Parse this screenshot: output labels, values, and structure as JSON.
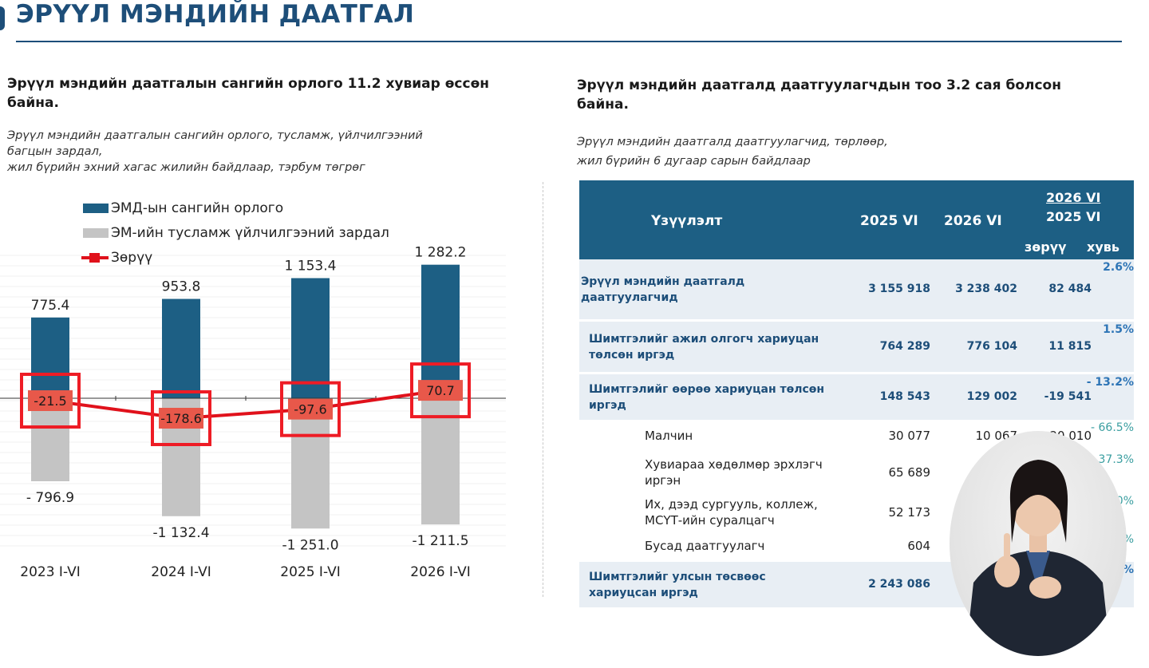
{
  "title": "ЭРҮҮЛ МЭНДИЙН ДААТГАЛ",
  "left": {
    "heading_lines": [
      "Эрүүл мэндийн даатгалын сангийн орлого 11.2 хувиар өссөн",
      "байна."
    ],
    "sub_lines": [
      "Эрүүл мэндийн даатгалын сангийн орлого, тусламж, үйлчилгээний",
      "багцын зардал,",
      "жил бүрийн эхний хагас жилийн байдлаар, тэрбум төгрөг"
    ]
  },
  "chart_data": {
    "type": "bar",
    "categories": [
      "2023 I-VI",
      "2024 I-VI",
      "2025 I-VI",
      "2026 I-VI"
    ],
    "series": [
      {
        "name": "ЭМД-ын сангийн орлого",
        "kind": "bar",
        "color": "#1d5f84",
        "values": [
          775.4,
          953.8,
          1153.4,
          1282.2
        ],
        "labels": [
          "775.4",
          "953.8",
          "1 153.4",
          "1 282.2"
        ]
      },
      {
        "name": "ЭМ-ийн тусламж үйлчилгээний зардал",
        "kind": "bar",
        "color": "#c4c4c4",
        "values": [
          -796.9,
          -1132.4,
          -1251.0,
          -1211.5
        ],
        "labels": [
          "- 796.9",
          "-1 132.4",
          "-1 251.0",
          "-1 211.5"
        ]
      },
      {
        "name": "Зөрүү",
        "kind": "line",
        "color": "#e0111b",
        "values": [
          -21.5,
          -178.6,
          -97.6,
          70.7
        ],
        "labels": [
          "-21.5",
          "-178.6",
          "-97.6",
          "70.7"
        ]
      }
    ],
    "ylim": [
      -1360,
      1360
    ],
    "legend_position": "top-left",
    "highlight_color": "#ee1c25"
  },
  "right": {
    "heading_lines": [
      "Эрүүл мэндийн даатгалд даатгуулагчдын тоо 3.2 сая болсон",
      "байна."
    ],
    "sub_lines": [
      "Эрүүл мэндийн даатгалд даатгуулагчид, төрлөөр,",
      "жил бүрийн 6 дугаар сарын байдлаар"
    ]
  },
  "table": {
    "headers": {
      "indicator": "Үзүүлэлт",
      "y2025": "2025 VI",
      "y2026": "2026 VI",
      "compare_top": "2026 VI",
      "compare_bottom": "2025 VI",
      "diff": "зөрүү",
      "pct": "хувь"
    },
    "rows": [
      {
        "type": "main",
        "label_lines": [
          "Эрүүл мэндийн даатгалд",
          "даатгуулагчид"
        ],
        "v2025": "3 155 918",
        "v2026": "3 238 402",
        "diff": "82 484",
        "pct": "2.6%"
      },
      {
        "type": "main",
        "label_lines": [
          "Шимтгэлийг ажил олгогч хариуцан",
          "төлсөн иргэд"
        ],
        "v2025": "764 289",
        "v2026": "776 104",
        "diff": "11 815",
        "pct": "1.5%"
      },
      {
        "type": "main",
        "label_lines": [
          "Шимтгэлийг өөрөө хариуцан төлсөн",
          "иргэд"
        ],
        "v2025": "148 543",
        "v2026": "129 002",
        "diff": "-19 541",
        "pct": "-  13.2%"
      },
      {
        "type": "sub",
        "label_lines": [
          "Малчин",
          ""
        ],
        "v2025": "30 077",
        "v2026": "10 067",
        "diff": "-20 010",
        "pct": "-  66.5%"
      },
      {
        "type": "sub",
        "label_lines": [
          "Хувиараа хөдөлмөр эрхлэгч",
          "иргэн"
        ],
        "v2025": "65 689",
        "v2026": "",
        "diff": "",
        "pct": "37.3%"
      },
      {
        "type": "sub",
        "label_lines": [
          "Их, дээд сургууль, коллеж,",
          "МСҮТ-ийн суралцагч"
        ],
        "v2025": "52 173",
        "v2026": "",
        "diff": "",
        "pct": "0%"
      },
      {
        "type": "sub",
        "label_lines": [
          "Бусад даатгуулагч",
          ""
        ],
        "v2025": "604",
        "v2026": "",
        "diff": "",
        "pct": "%"
      },
      {
        "type": "main",
        "label_lines": [
          "Шимтгэлийг улсын төсвөөс",
          "хариуцсан иргэд"
        ],
        "v2025": "2 243 086",
        "v2026": "",
        "diff": "",
        "pct": "%"
      }
    ]
  }
}
